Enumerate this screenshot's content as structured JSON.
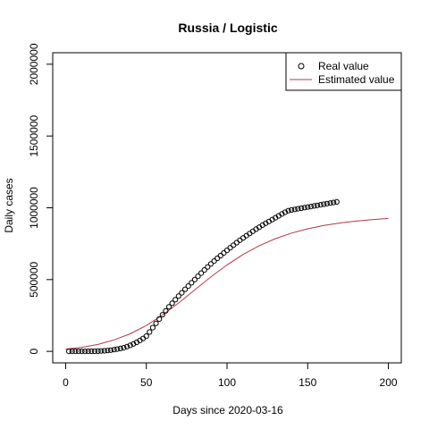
{
  "chart_data": {
    "type": "scatter",
    "title": "Russia / Logistic",
    "xlabel": "Days since 2020-03-16",
    "ylabel": "Daily cases",
    "xlim": [
      -8,
      208
    ],
    "ylim": [
      -80000,
      2080000
    ],
    "x_ticks": [
      0,
      50,
      100,
      150,
      200
    ],
    "x_tick_labels": [
      "0",
      "50",
      "100",
      "150",
      "200"
    ],
    "y_ticks": [
      0,
      500000,
      1000000,
      1500000,
      2000000
    ],
    "y_tick_labels": [
      "0",
      "500000",
      "1000000",
      "1500000",
      "2000000"
    ],
    "grid": false,
    "legend_position": "top-right",
    "series": [
      {
        "name": "Real value",
        "kind": "points",
        "marker": "open-circle",
        "color": "#000000",
        "x": [
          2,
          4,
          6,
          8,
          10,
          12,
          14,
          16,
          18,
          20,
          22,
          24,
          26,
          28,
          30,
          32,
          34,
          36,
          38,
          40,
          42,
          44,
          46,
          48,
          50,
          52,
          54,
          56,
          58,
          60,
          62,
          64,
          66,
          68,
          70,
          72,
          74,
          76,
          78,
          80,
          82,
          84,
          86,
          88,
          90,
          92,
          94,
          96,
          98,
          100,
          102,
          104,
          106,
          108,
          110,
          112,
          114,
          116,
          118,
          120,
          122,
          124,
          126,
          128,
          130,
          132,
          134,
          136,
          138,
          140,
          142,
          144,
          146,
          148,
          150,
          152,
          154,
          156,
          158,
          160,
          162,
          164,
          166,
          168
        ],
        "y": [
          90,
          120,
          150,
          200,
          250,
          300,
          500,
          700,
          1000,
          1500,
          2500,
          4000,
          6000,
          8500,
          12000,
          16000,
          20000,
          25000,
          33000,
          42000,
          52000,
          63000,
          76000,
          90000,
          106000,
          135000,
          165000,
          195000,
          225000,
          255000,
          282000,
          310000,
          335000,
          360000,
          385000,
          408000,
          432000,
          455000,
          478000,
          500000,
          523000,
          545000,
          567000,
          588000,
          609000,
          629000,
          648000,
          667000,
          685000,
          704000,
          722000,
          740000,
          757000,
          774000,
          790000,
          806000,
          821000,
          836000,
          851000,
          865000,
          879000,
          892000,
          905000,
          918000,
          931000,
          944000,
          957000,
          969000,
          980000,
          985000,
          989000,
          993000,
          997000,
          1001000,
          1005000,
          1009000,
          1013000,
          1017000,
          1021000,
          1025000,
          1029000,
          1033000,
          1037000,
          1041000
        ]
      },
      {
        "name": "Estimated value",
        "kind": "line",
        "color": "#b03a48",
        "x": [
          0,
          10,
          20,
          30,
          40,
          50,
          60,
          70,
          80,
          90,
          100,
          110,
          120,
          130,
          140,
          150,
          160,
          170,
          180,
          190,
          200
        ],
        "y": [
          16000,
          28000,
          48000,
          80000,
          122000,
          180000,
          253000,
          337000,
          428000,
          518000,
          602000,
          675000,
          736000,
          785000,
          824000,
          854000,
          877000,
          894000,
          907000,
          917000,
          926000
        ]
      }
    ]
  }
}
